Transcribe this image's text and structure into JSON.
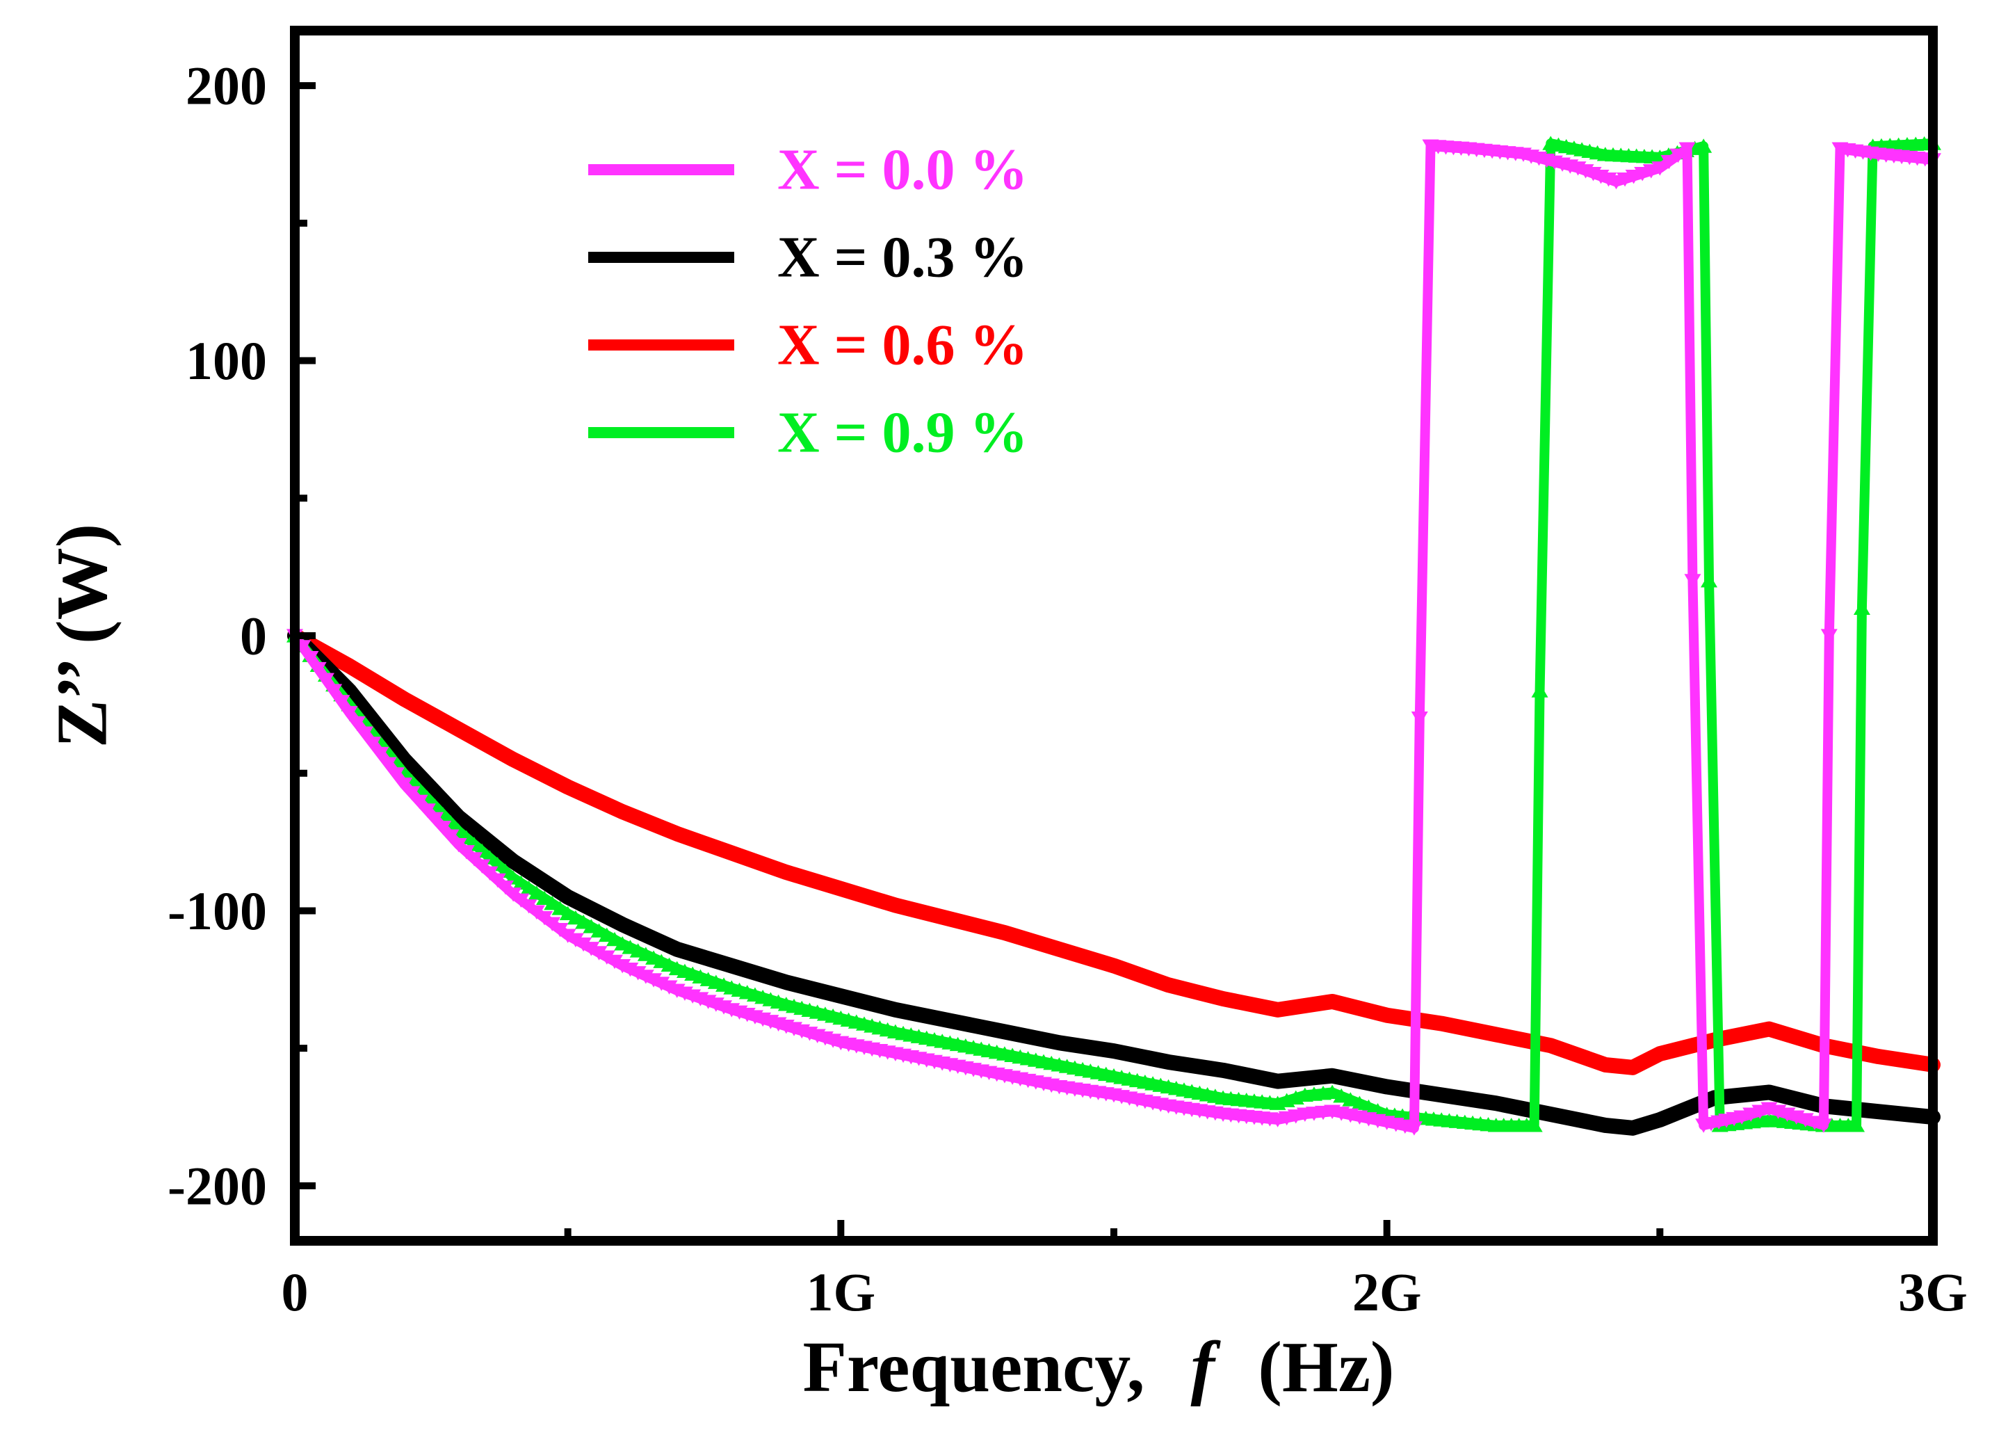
{
  "chart_data": {
    "type": "line",
    "title": "",
    "xlabel_main": "Frequency,",
    "xlabel_symbol": "f",
    "xlabel_unit": "(Hz)",
    "ylabel": "Z’’ (W)",
    "xlim": [
      0,
      3000000000
    ],
    "ylim": [
      -220,
      220
    ],
    "xticks": [
      0,
      1000000000,
      2000000000,
      3000000000
    ],
    "xtick_labels": [
      "0",
      "1G",
      "2G",
      "3G"
    ],
    "yticks": [
      -200,
      -100,
      0,
      100,
      200
    ],
    "ytick_labels": [
      "-200",
      "-100",
      "0",
      "100",
      "200"
    ],
    "legend_position": "top-left",
    "series": [
      {
        "name": "X = 0.0 %",
        "color": "#ff33ff",
        "marker": "triangle-down",
        "x": [
          0,
          100000000,
          200000000,
          300000000,
          400000000,
          500000000,
          600000000,
          700000000,
          800000000,
          900000000,
          1000000000,
          1100000000,
          1200000000,
          1300000000,
          1400000000,
          1500000000,
          1600000000,
          1700000000,
          1800000000,
          1850000000,
          1900000000,
          1950000000,
          2000000000,
          2050000000,
          2060000000,
          2080000000,
          2150000000,
          2250000000,
          2350000000,
          2420000000,
          2500000000,
          2550000000,
          2560000000,
          2580000000,
          2650000000,
          2700000000,
          2750000000,
          2800000000,
          2810000000,
          2830000000,
          2900000000,
          3000000000
        ],
        "y": [
          0,
          -28,
          -54,
          -76,
          -94,
          -109,
          -120,
          -129,
          -136,
          -142,
          -148,
          -152,
          -156,
          -160,
          -164,
          -167,
          -171,
          -174,
          -176,
          -174,
          -173,
          -175,
          -177,
          -179,
          -30,
          178,
          177,
          175,
          170,
          165,
          170,
          177,
          20,
          -178,
          -175,
          -172,
          -175,
          -178,
          0,
          177,
          175,
          173
        ]
      },
      {
        "name": "X = 0.3 %",
        "color": "#000000",
        "marker": "line",
        "x": [
          0,
          100000000,
          200000000,
          300000000,
          400000000,
          500000000,
          600000000,
          700000000,
          800000000,
          900000000,
          1000000000,
          1100000000,
          1200000000,
          1300000000,
          1400000000,
          1500000000,
          1600000000,
          1700000000,
          1800000000,
          1900000000,
          2000000000,
          2100000000,
          2200000000,
          2300000000,
          2400000000,
          2450000000,
          2500000000,
          2600000000,
          2700000000,
          2800000000,
          2900000000,
          3000000000
        ],
        "y": [
          0,
          -20,
          -45,
          -66,
          -82,
          -95,
          -105,
          -114,
          -120,
          -126,
          -131,
          -136,
          -140,
          -144,
          -148,
          -151,
          -155,
          -158,
          -162,
          -160,
          -164,
          -167,
          -170,
          -174,
          -178,
          -179,
          -176,
          -168,
          -166,
          -171,
          -173,
          -175
        ]
      },
      {
        "name": "X = 0.6 %",
        "color": "#ff0000",
        "marker": "line",
        "x": [
          0,
          100000000,
          200000000,
          300000000,
          400000000,
          500000000,
          600000000,
          700000000,
          800000000,
          900000000,
          1000000000,
          1100000000,
          1200000000,
          1300000000,
          1400000000,
          1500000000,
          1600000000,
          1700000000,
          1800000000,
          1900000000,
          2000000000,
          2100000000,
          2200000000,
          2300000000,
          2400000000,
          2450000000,
          2500000000,
          2600000000,
          2700000000,
          2800000000,
          2900000000,
          3000000000
        ],
        "y": [
          0,
          -11,
          -23,
          -34,
          -45,
          -55,
          -64,
          -72,
          -79,
          -86,
          -92,
          -98,
          -103,
          -108,
          -114,
          -120,
          -127,
          -132,
          -136,
          -133,
          -138,
          -141,
          -145,
          -149,
          -156,
          -157,
          -152,
          -147,
          -143,
          -149,
          -153,
          -156
        ]
      },
      {
        "name": "X = 0.9 %",
        "color": "#00ee22",
        "marker": "triangle-up",
        "x": [
          0,
          100000000,
          200000000,
          300000000,
          400000000,
          500000000,
          600000000,
          700000000,
          800000000,
          900000000,
          1000000000,
          1100000000,
          1200000000,
          1300000000,
          1400000000,
          1500000000,
          1600000000,
          1700000000,
          1800000000,
          1850000000,
          1900000000,
          1950000000,
          2000000000,
          2100000000,
          2200000000,
          2270000000,
          2280000000,
          2300000000,
          2400000000,
          2500000000,
          2580000000,
          2590000000,
          2610000000,
          2700000000,
          2800000000,
          2860000000,
          2870000000,
          2890000000,
          3000000000
        ],
        "y": [
          0,
          -25,
          -50,
          -71,
          -88,
          -101,
          -112,
          -121,
          -128,
          -134,
          -139,
          -144,
          -148,
          -152,
          -156,
          -160,
          -164,
          -168,
          -170,
          -167,
          -166,
          -170,
          -174,
          -176,
          -178,
          -178,
          -20,
          179,
          175,
          174,
          178,
          20,
          -178,
          -176,
          -178,
          -178,
          10,
          178,
          179
        ]
      }
    ]
  }
}
